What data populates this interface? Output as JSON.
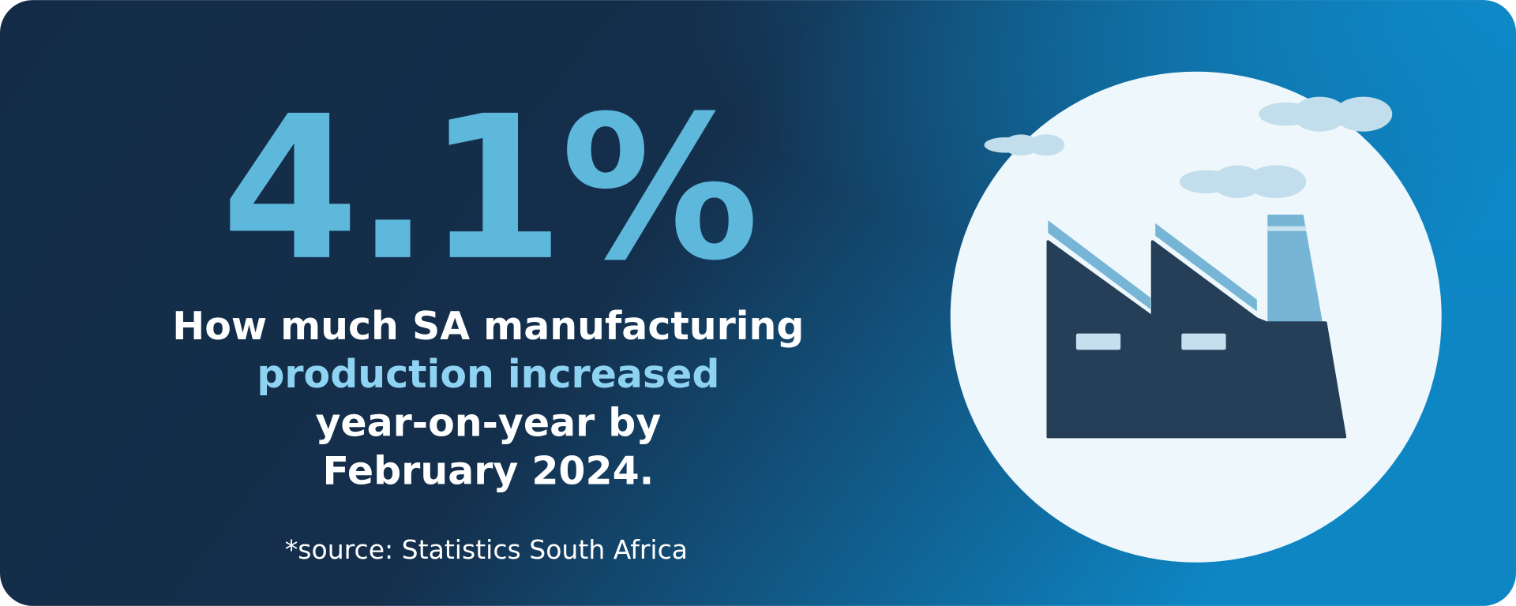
{
  "stat": "4.1%",
  "headline": {
    "lines": [
      "How much SA manufacturing",
      "production increased",
      "year-on-year by",
      "February 2024."
    ]
  },
  "source": "*source: Statistics South Africa"
}
